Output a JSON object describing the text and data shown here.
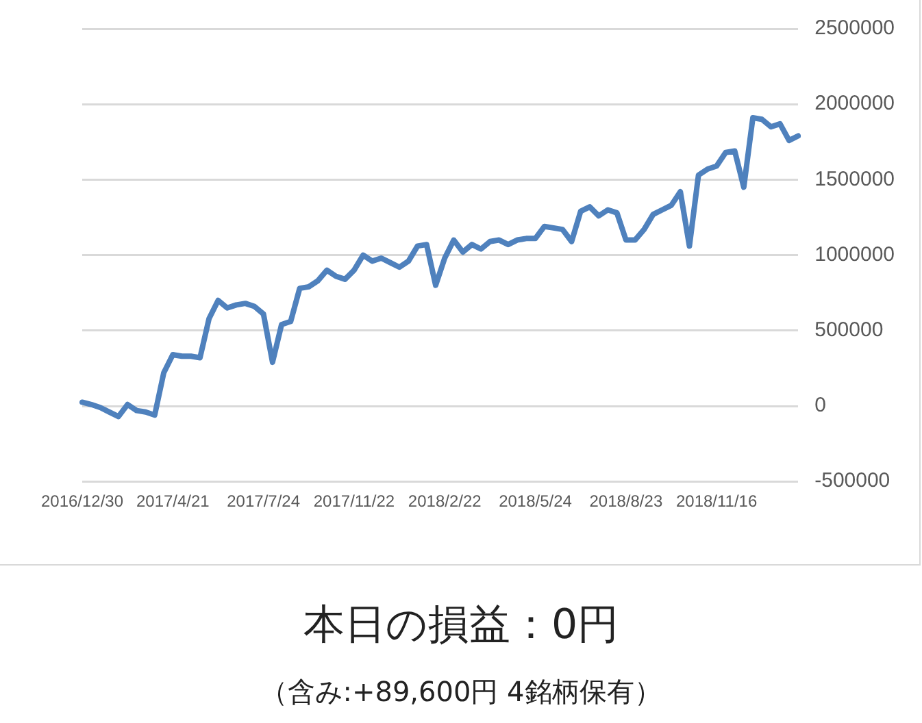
{
  "chart_data": {
    "type": "line",
    "categories": [
      "2016/12/30",
      null,
      null,
      null,
      null,
      null,
      null,
      null,
      null,
      null,
      "2017/4/21",
      null,
      null,
      null,
      null,
      null,
      null,
      null,
      null,
      null,
      "2017/7/24",
      null,
      null,
      null,
      null,
      null,
      null,
      null,
      null,
      null,
      "2017/11/22",
      null,
      null,
      null,
      null,
      null,
      null,
      null,
      null,
      null,
      "2018/2/22",
      null,
      null,
      null,
      null,
      null,
      null,
      null,
      null,
      null,
      "2018/5/24",
      null,
      null,
      null,
      null,
      null,
      null,
      null,
      null,
      null,
      "2018/8/23",
      null,
      null,
      null,
      null,
      null,
      null,
      null,
      null,
      null,
      "2018/11/16",
      null,
      null,
      null,
      null,
      null,
      null,
      null,
      null,
      null
    ],
    "values": [
      25000,
      10000,
      -10000,
      -40000,
      -70000,
      10000,
      -30000,
      -40000,
      -60000,
      220000,
      340000,
      330000,
      330000,
      320000,
      580000,
      700000,
      650000,
      670000,
      680000,
      660000,
      610000,
      290000,
      540000,
      560000,
      780000,
      790000,
      830000,
      900000,
      860000,
      840000,
      900000,
      1000000,
      960000,
      980000,
      950000,
      920000,
      960000,
      1060000,
      1070000,
      800000,
      980000,
      1100000,
      1020000,
      1070000,
      1040000,
      1090000,
      1100000,
      1070000,
      1100000,
      1110000,
      1110000,
      1190000,
      1180000,
      1170000,
      1090000,
      1290000,
      1320000,
      1260000,
      1300000,
      1280000,
      1100000,
      1100000,
      1170000,
      1270000,
      1300000,
      1330000,
      1420000,
      1060000,
      1530000,
      1570000,
      1590000,
      1680000,
      1690000,
      1450000,
      1910000,
      1900000,
      1850000,
      1870000,
      1760000,
      1790000
    ],
    "color": "#4f81bd",
    "ylim": [
      -500000,
      2500000
    ],
    "yticks": [
      -500000,
      0,
      500000,
      1000000,
      1500000,
      2000000,
      2500000
    ],
    "grid": "y",
    "legend": false,
    "marker": "none",
    "line_style": "solid",
    "annotations": [
      "本日の損益：0円",
      "（含み:+89,600円  4銘柄保有）"
    ]
  }
}
